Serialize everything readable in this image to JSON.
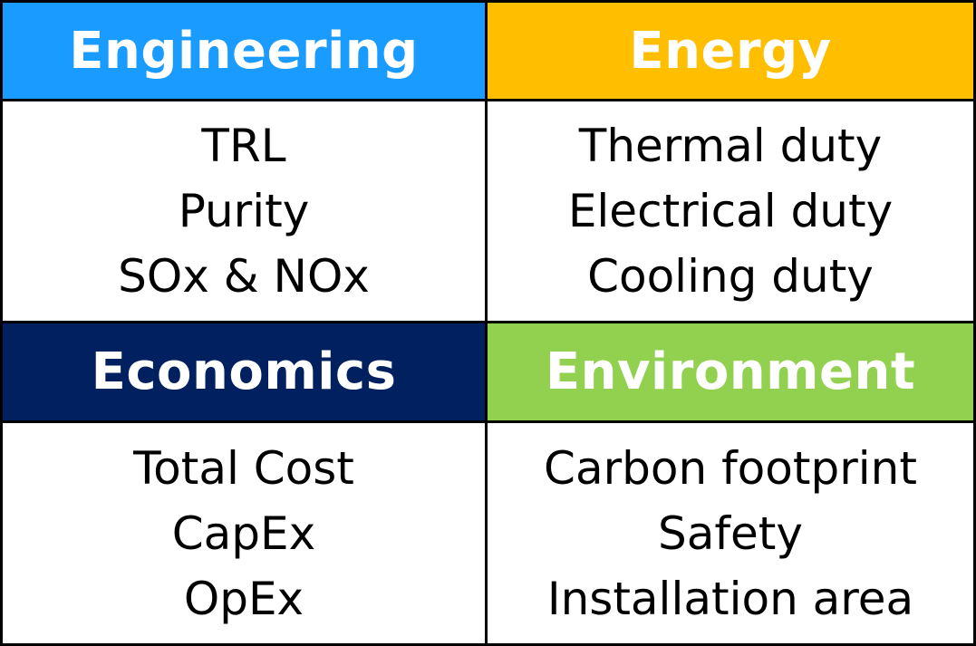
{
  "quadrants": [
    {
      "title": "Engineering",
      "color": "#1a9bff",
      "items": [
        "TRL",
        "Purity",
        "SOx & NOx"
      ]
    },
    {
      "title": "Energy",
      "color": "#ffbf00",
      "items": [
        "Thermal duty",
        "Electrical duty",
        "Cooling duty"
      ]
    },
    {
      "title": "Economics",
      "color": "#002060",
      "items": [
        "Total Cost",
        "CapEx",
        "OpEx"
      ]
    },
    {
      "title": "Environment",
      "color": "#92d050",
      "items": [
        "Carbon footprint",
        "Safety",
        "Installation area"
      ]
    }
  ]
}
